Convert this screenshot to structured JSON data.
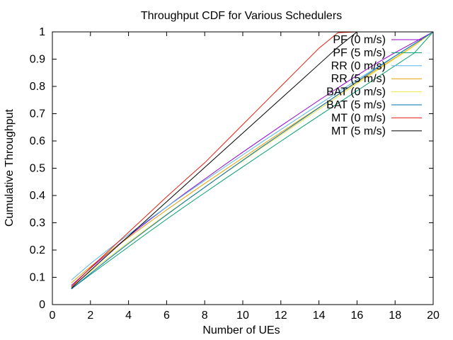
{
  "chart_data": {
    "type": "line",
    "title": "Throughput CDF for Various Schedulers",
    "xlabel": "Number of UEs",
    "ylabel": "Cumulative Throughput",
    "xlim": [
      0,
      20
    ],
    "ylim": [
      0,
      1
    ],
    "xticks": [
      "0",
      "2",
      "4",
      "6",
      "8",
      "10",
      "12",
      "14",
      "16",
      "18",
      "20"
    ],
    "yticks": [
      "0",
      "0.1",
      "0.2",
      "0.3",
      "0.4",
      "0.5",
      "0.6",
      "0.7",
      "0.8",
      "0.9",
      "1"
    ],
    "grid": false,
    "legend_position": "top-right",
    "x": [
      1,
      2,
      3,
      4,
      5,
      6,
      7,
      8,
      9,
      10,
      11,
      12,
      13,
      14,
      15,
      16,
      17,
      18,
      19,
      20
    ],
    "series": [
      {
        "name": "PF (0 m/s)",
        "color": "#9400d3",
        "values": [
          0.07,
          0.133,
          0.193,
          0.25,
          0.305,
          0.358,
          0.41,
          0.46,
          0.51,
          0.559,
          0.607,
          0.655,
          0.702,
          0.749,
          0.795,
          0.84,
          0.884,
          0.924,
          0.962,
          1.0
        ]
      },
      {
        "name": "PF (5 m/s)",
        "color": "#009e73",
        "values": [
          0.058,
          0.11,
          0.161,
          0.212,
          0.263,
          0.313,
          0.362,
          0.41,
          0.458,
          0.505,
          0.552,
          0.599,
          0.646,
          0.692,
          0.738,
          0.784,
          0.83,
          0.876,
          0.922,
          1.0
        ]
      },
      {
        "name": "RR (0 m/s)",
        "color": "#56b4e9",
        "values": [
          0.09,
          0.15,
          0.205,
          0.257,
          0.308,
          0.358,
          0.407,
          0.455,
          0.502,
          0.549,
          0.596,
          0.642,
          0.688,
          0.734,
          0.779,
          0.824,
          0.868,
          0.912,
          0.956,
          1.0
        ]
      },
      {
        "name": "RR (5 m/s)",
        "color": "#e69f00",
        "values": [
          0.08,
          0.139,
          0.194,
          0.246,
          0.297,
          0.347,
          0.396,
          0.444,
          0.491,
          0.538,
          0.585,
          0.631,
          0.677,
          0.723,
          0.769,
          0.815,
          0.86,
          0.905,
          0.95,
          1.0
        ]
      },
      {
        "name": "BAT (0 m/s)",
        "color": "#f0e442",
        "values": [
          0.065,
          0.121,
          0.175,
          0.228,
          0.28,
          0.331,
          0.381,
          0.43,
          0.479,
          0.527,
          0.575,
          0.622,
          0.669,
          0.716,
          0.763,
          0.81,
          0.856,
          0.902,
          0.948,
          1.0
        ]
      },
      {
        "name": "BAT (5 m/s)",
        "color": "#0072b2",
        "values": [
          0.057,
          0.114,
          0.17,
          0.224,
          0.277,
          0.329,
          0.38,
          0.43,
          0.48,
          0.529,
          0.578,
          0.626,
          0.674,
          0.722,
          0.77,
          0.818,
          0.865,
          0.911,
          0.955,
          1.0
        ]
      },
      {
        "name": "MT (0 m/s)",
        "color": "#e51e10",
        "values": [
          0.065,
          0.135,
          0.2,
          0.265,
          0.33,
          0.395,
          0.458,
          0.52,
          0.59,
          0.66,
          0.73,
          0.8,
          0.87,
          0.94,
          0.997,
          1.0,
          1.0,
          1.0,
          1.0,
          1.0
        ]
      },
      {
        "name": "MT (5 m/s)",
        "color": "#000000",
        "values": [
          0.06,
          0.125,
          0.188,
          0.251,
          0.314,
          0.377,
          0.44,
          0.503,
          0.566,
          0.629,
          0.692,
          0.755,
          0.818,
          0.881,
          0.944,
          1.0,
          1.0,
          1.0,
          1.0,
          1.0
        ]
      }
    ]
  }
}
